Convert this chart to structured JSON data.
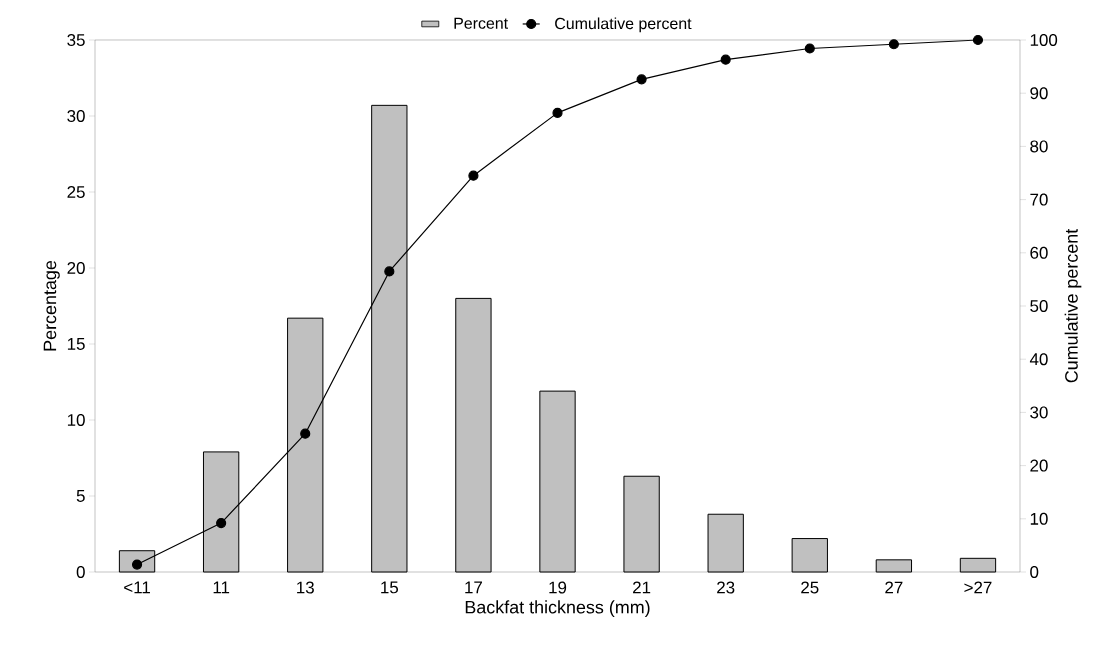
{
  "chart_data": {
    "type": "bar",
    "xlabel": "Backfat thickness (mm)",
    "ylabel": "Percentage",
    "y2label": "Cumulative percent",
    "categories": [
      "<11",
      "11",
      "13",
      "15",
      "17",
      "19",
      "21",
      "23",
      "25",
      "27",
      ">27"
    ],
    "series": [
      {
        "name": "Percent",
        "color": "#c0c0c0",
        "values": [
          1.4,
          7.9,
          16.7,
          30.7,
          18.0,
          11.9,
          6.3,
          3.8,
          2.2,
          0.8,
          0.9
        ]
      },
      {
        "name": "Cumulative percent",
        "type": "line",
        "axis": "y2",
        "color": "#000000",
        "marker": "circle",
        "values": [
          1.4,
          9.2,
          26,
          56.5,
          74.5,
          86.3,
          92.6,
          96.3,
          98.4,
          99.2,
          100
        ]
      }
    ],
    "ylim": [
      0,
      35
    ],
    "yticks": [
      0,
      5,
      10,
      15,
      20,
      25,
      30,
      35
    ],
    "y2lim": [
      0,
      100
    ],
    "y2ticks": [
      0,
      10,
      20,
      30,
      40,
      50,
      60,
      70,
      80,
      90,
      100
    ],
    "legend": "top",
    "grid": false
  }
}
